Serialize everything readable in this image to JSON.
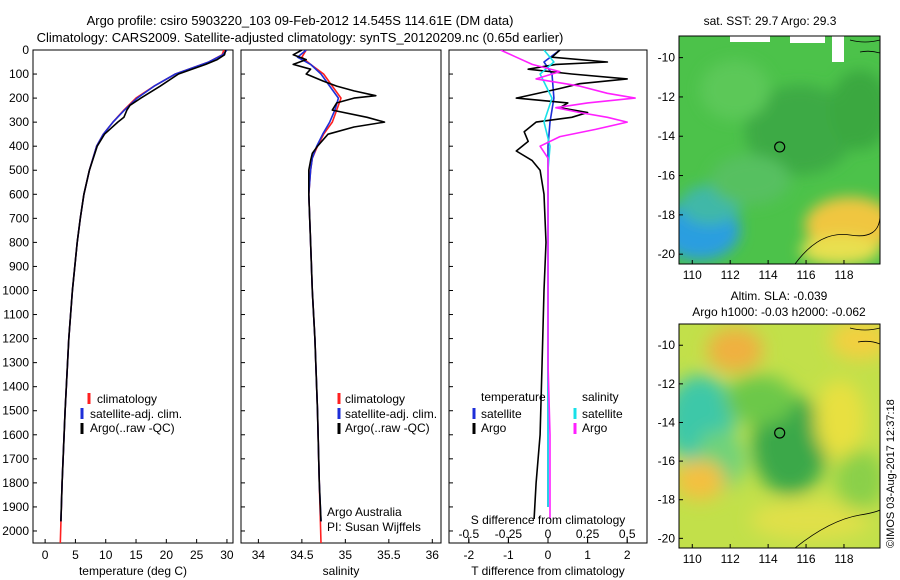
{
  "header": {
    "title_line1": "Argo profile: csiro 5903220_103 09-Feb-2012 14.545S 114.61E (DM data)",
    "title_line2": "Climatology: CARS2009. Satellite-adjusted climatology: synTS_20120209.nc (0.65d earlier)"
  },
  "colors": {
    "climatology": "#ff2020",
    "satellite": "#1e2ed8",
    "argo": "#000000",
    "salinity_sat": "#18e0e8",
    "salinity_argo": "#ff20ff"
  },
  "chart_data": [
    {
      "type": "line",
      "panel": "temperature",
      "xlabel": "temperature (deg C)",
      "xlim": [
        -2,
        31
      ],
      "xticks": [
        "0",
        "5",
        "10",
        "15",
        "20",
        "25",
        "30"
      ],
      "xtick_values": [
        0,
        5,
        10,
        15,
        20,
        25,
        30
      ],
      "ylim": [
        0,
        2050
      ],
      "yticks": [
        "0",
        "100",
        "200",
        "300",
        "400",
        "500",
        "600",
        "700",
        "800",
        "900",
        "1000",
        "1100",
        "1200",
        "1300",
        "1400",
        "1500",
        "1600",
        "1700",
        "1800",
        "1900",
        "2000"
      ],
      "ytick_values": [
        0,
        100,
        200,
        300,
        400,
        500,
        600,
        700,
        800,
        900,
        1000,
        1100,
        1200,
        1300,
        1400,
        1500,
        1600,
        1700,
        1800,
        1900,
        2000
      ],
      "legend": [
        "climatology",
        "satellite-adj. clim.",
        "Argo(..raw -QC)"
      ],
      "legend_placement": "lower-right",
      "series": [
        {
          "name": "climatology",
          "color_key": "climatology",
          "depth": [
            0,
            20,
            50,
            100,
            150,
            200,
            250,
            300,
            350,
            400,
            500,
            600,
            700,
            800,
            1000,
            1200,
            1500,
            1800,
            2050
          ],
          "values": [
            29.5,
            29.2,
            27.0,
            21.5,
            18.0,
            15.0,
            13.0,
            11.2,
            9.6,
            8.5,
            7.3,
            6.4,
            5.8,
            5.3,
            4.5,
            3.9,
            3.3,
            2.8,
            2.5
          ]
        },
        {
          "name": "satellite-adj. clim.",
          "color_key": "satellite",
          "depth": [
            0,
            20,
            50,
            100,
            150,
            200,
            250,
            300,
            350,
            400,
            500,
            600,
            700,
            800,
            1000,
            1200,
            1500,
            1800,
            1960
          ],
          "values": [
            30.0,
            29.3,
            27.0,
            21.5,
            18.0,
            15.2,
            13.1,
            11.2,
            9.6,
            8.5,
            7.3,
            6.4,
            5.8,
            5.3,
            4.5,
            3.9,
            3.3,
            2.8,
            2.6
          ]
        },
        {
          "name": "Argo(..raw -QC)",
          "color_key": "argo",
          "depth": [
            0,
            20,
            40,
            60,
            100,
            150,
            200,
            230,
            250,
            280,
            300,
            350,
            400,
            500,
            600,
            700,
            800,
            1000,
            1200,
            1500,
            1800,
            1960
          ],
          "values": [
            29.8,
            29.6,
            28.4,
            26.5,
            22.0,
            19.0,
            15.8,
            14.0,
            13.5,
            13.0,
            12.0,
            9.8,
            8.6,
            7.3,
            6.4,
            5.8,
            5.3,
            4.5,
            3.9,
            3.3,
            2.8,
            2.6
          ]
        }
      ]
    },
    {
      "type": "line",
      "panel": "salinity",
      "xlabel": "salinity",
      "xlim": [
        33.8,
        36.1
      ],
      "xticks": [
        "34",
        "34.5",
        "35",
        "35.5",
        "36"
      ],
      "xtick_values": [
        34,
        34.5,
        35,
        35.5,
        36
      ],
      "ylim": [
        0,
        2050
      ],
      "legend": [
        "climatology",
        "satellite-adj. clim.",
        "Argo(..raw -QC)"
      ],
      "legend_placement": "lower-right",
      "annotation_line1": "Argo Australia",
      "annotation_line2": "PI: Susan Wijffels",
      "series": [
        {
          "name": "climatology",
          "color_key": "climatology",
          "depth": [
            0,
            30,
            60,
            100,
            150,
            200,
            250,
            300,
            350,
            400,
            450,
            500,
            600,
            800,
            1000,
            1200,
            1500,
            1800,
            2050
          ],
          "values": [
            34.55,
            34.5,
            34.6,
            34.75,
            34.85,
            34.95,
            34.9,
            34.85,
            34.75,
            34.68,
            34.62,
            34.6,
            34.58,
            34.6,
            34.62,
            34.65,
            34.68,
            34.7,
            34.72
          ]
        },
        {
          "name": "satellite-adj. clim.",
          "color_key": "satellite",
          "depth": [
            0,
            30,
            60,
            100,
            150,
            200,
            250,
            300,
            350,
            400,
            450,
            500,
            600,
            800,
            1000,
            1200,
            1500,
            1800,
            1960
          ],
          "values": [
            34.55,
            34.45,
            34.6,
            34.72,
            34.82,
            34.92,
            34.88,
            34.82,
            34.74,
            34.67,
            34.62,
            34.6,
            34.58,
            34.6,
            34.62,
            34.65,
            34.68,
            34.7,
            34.72
          ]
        },
        {
          "name": "Argo(..raw -QC)",
          "color_key": "argo",
          "depth": [
            0,
            20,
            40,
            60,
            80,
            100,
            130,
            150,
            170,
            190,
            200,
            220,
            250,
            280,
            300,
            320,
            350,
            400,
            430,
            460,
            500,
            600,
            800,
            1000,
            1200,
            1500,
            1800,
            1960
          ],
          "values": [
            34.5,
            34.4,
            34.55,
            34.4,
            34.6,
            34.55,
            34.75,
            34.9,
            35.1,
            35.35,
            35.1,
            34.9,
            34.85,
            35.25,
            35.45,
            35.1,
            34.8,
            34.68,
            34.62,
            34.6,
            34.58,
            34.58,
            34.6,
            34.62,
            34.65,
            34.68,
            34.7,
            34.72
          ]
        }
      ]
    },
    {
      "type": "line",
      "panel": "difference",
      "xlabel": "T difference from climatology",
      "xlabel_top": "S difference from climatology",
      "xlim": [
        -2.5,
        2.5
      ],
      "xticks": [
        "-2",
        "-1",
        "0",
        "1",
        "2"
      ],
      "xtick_values": [
        -2,
        -1,
        0,
        1,
        2
      ],
      "s_xticks": [
        "-0.5",
        "-0.25",
        "0",
        "0.25",
        "0.5"
      ],
      "s_xtick_t_equiv": [
        -2,
        -1,
        0,
        1,
        2
      ],
      "ylim": [
        0,
        2050
      ],
      "legend_titles": [
        "temperature",
        "salinity"
      ],
      "legend": [
        "satellite",
        "Argo",
        "satellite",
        "Argo"
      ],
      "legend_placement": "lower-center",
      "series": [
        {
          "name": "temperature satellite",
          "color_key": "satellite",
          "depth": [
            0,
            50,
            100,
            200,
            300,
            400,
            500,
            700,
            1000,
            1300,
            1600,
            1900
          ],
          "values": [
            0.3,
            -0.1,
            0.1,
            0.15,
            0.05,
            0.0,
            0.0,
            0.0,
            0.0,
            0.0,
            0.0,
            0.0
          ]
        },
        {
          "name": "temperature Argo",
          "color_key": "argo",
          "depth": [
            0,
            30,
            50,
            60,
            80,
            100,
            120,
            140,
            160,
            200,
            220,
            240,
            260,
            280,
            300,
            340,
            380,
            420,
            460,
            500,
            600,
            800,
            1000,
            1300,
            1600,
            1800,
            1950
          ],
          "values": [
            0.3,
            0.1,
            1.5,
            0.2,
            -0.5,
            0.6,
            2.0,
            0.8,
            0.3,
            -0.8,
            0.5,
            0.3,
            1.0,
            0.6,
            -0.3,
            -0.6,
            -0.5,
            -0.8,
            -0.4,
            -0.2,
            -0.1,
            -0.05,
            -0.1,
            -0.15,
            -0.2,
            -0.3,
            -0.35
          ]
        },
        {
          "name": "salinity satellite",
          "color_key": "salinity_sat",
          "depth": [
            0,
            50,
            100,
            200,
            300,
            400,
            500,
            700,
            1000,
            1300,
            1600,
            1900
          ],
          "values": [
            -0.1,
            0.15,
            -0.2,
            0.1,
            -0.1,
            0.05,
            0.0,
            0.0,
            0.0,
            0.0,
            0.0,
            0.0
          ]
        },
        {
          "name": "salinity Argo",
          "color_key": "salinity_argo",
          "depth": [
            0,
            30,
            60,
            90,
            120,
            150,
            180,
            200,
            220,
            240,
            260,
            280,
            300,
            330,
            360,
            400,
            450,
            500,
            600,
            800,
            1000,
            1300,
            1600,
            1800,
            1950
          ],
          "values": [
            -1.2,
            -0.8,
            -0.4,
            0.3,
            -0.3,
            0.8,
            1.5,
            2.2,
            1.0,
            0.2,
            0.8,
            1.5,
            2.0,
            1.2,
            0.3,
            -0.2,
            0.0,
            0.0,
            0.0,
            0.0,
            0.0,
            0.0,
            0.05,
            0.05,
            0.05
          ]
        }
      ]
    }
  ],
  "map_sst": {
    "title": "sat. SST: 29.7 Argo: 29.3",
    "xticks": [
      "110",
      "112",
      "114",
      "116",
      "118"
    ],
    "xtick_values": [
      110,
      112,
      114,
      116,
      118
    ],
    "yticks": [
      "-10",
      "-12",
      "-14",
      "-16",
      "-18",
      "-20"
    ],
    "ytick_values": [
      -10,
      -12,
      -14,
      -16,
      -18,
      -20
    ],
    "lon_range": [
      109.3,
      119.9
    ],
    "lat_range": [
      -20.5,
      -8.9
    ],
    "argo_lon": 114.61,
    "argo_lat": -14.545
  },
  "map_sla": {
    "title_line1": "Altim. SLA: -0.039",
    "title_line2": "Argo h1000: -0.03 h2000: -0.062",
    "xticks": [
      "110",
      "112",
      "114",
      "116",
      "118"
    ],
    "xtick_values": [
      110,
      112,
      114,
      116,
      118
    ],
    "yticks": [
      "-10",
      "-12",
      "-14",
      "-16",
      "-18",
      "-20"
    ],
    "ytick_values": [
      -10,
      -12,
      -14,
      -16,
      -18,
      -20
    ],
    "lon_range": [
      109.3,
      119.9
    ],
    "lat_range": [
      -20.5,
      -8.9
    ],
    "argo_lon": 114.61,
    "argo_lat": -14.545
  },
  "watermark": "©IMOS 03-Aug-2017 12:37:18"
}
